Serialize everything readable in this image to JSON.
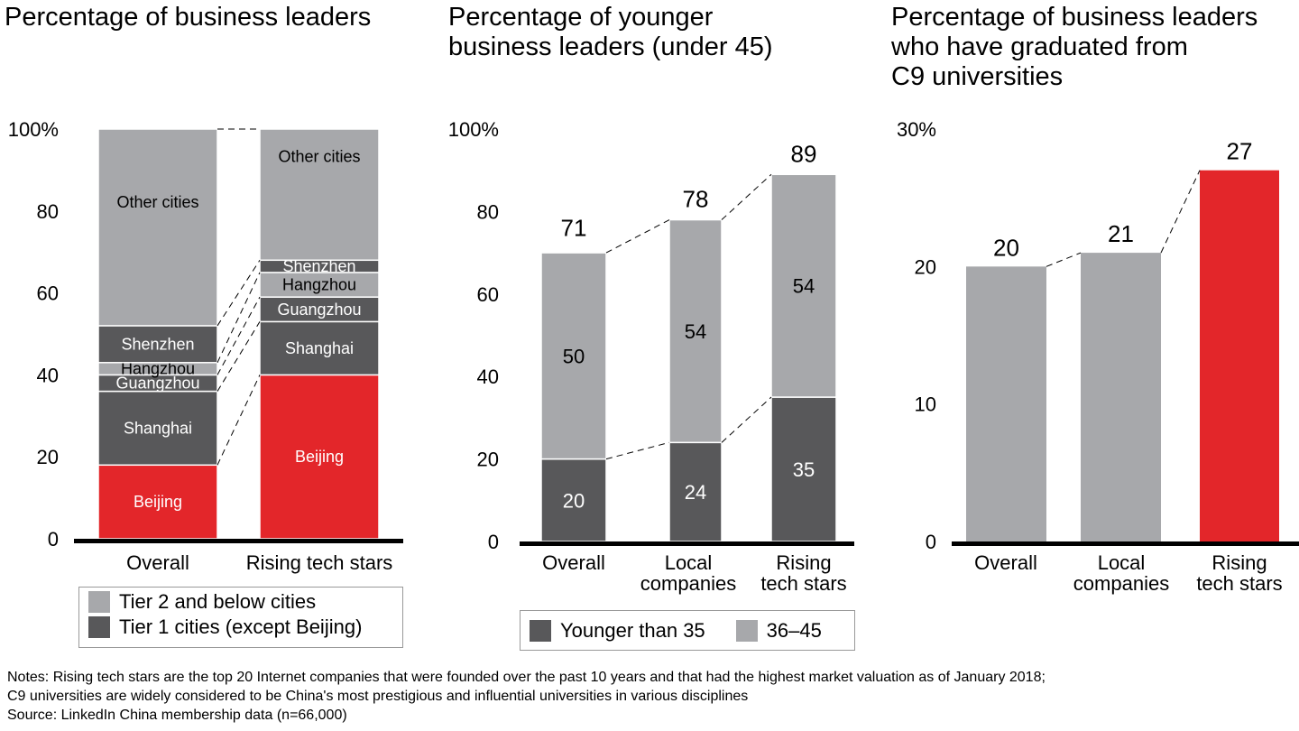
{
  "colors": {
    "red": "#e3262a",
    "dark": "#58585a",
    "light": "#a7a8ab",
    "axis": "#000000"
  },
  "notes": [
    "Notes: Rising tech stars are the top 20 Internet companies that were founded over the past 10 years and that had the highest market valuation as of January 2018;",
    "C9 universities are widely considered to be China's most prestigious and influential universities in various disciplines",
    "Source: LinkedIn China membership data (n=66,000)"
  ],
  "chart_data": [
    {
      "type": "bar",
      "stacked": true,
      "title": "Percentage of business leaders",
      "ylabel": "",
      "ylim": [
        0,
        100
      ],
      "yticks": [
        "0",
        "20",
        "40",
        "60",
        "80",
        "100%"
      ],
      "categories": [
        "Overall",
        "Rising tech stars"
      ],
      "series": [
        {
          "name": "Beijing",
          "color_key": "red",
          "values": [
            18,
            40
          ]
        },
        {
          "name": "Shanghai",
          "color_key": "dark",
          "values": [
            18,
            13
          ]
        },
        {
          "name": "Guangzhou",
          "color_key": "dark",
          "values": [
            4,
            6
          ]
        },
        {
          "name": "Hangzhou",
          "color_key": "light",
          "values": [
            3,
            6
          ]
        },
        {
          "name": "Shenzhen",
          "color_key": "dark",
          "values": [
            9,
            3
          ]
        },
        {
          "name": "Other cities",
          "color_key": "light",
          "values": [
            48,
            32
          ]
        }
      ],
      "legend": [
        {
          "label": "Tier 2 and below cities",
          "color_key": "light"
        },
        {
          "label": "Tier 1 cities (except Beijing)",
          "color_key": "dark"
        }
      ],
      "legend_position": "bottom"
    },
    {
      "type": "bar",
      "stacked": true,
      "title": "Percentage of younger business leaders (under 45)",
      "title_lines": [
        "Percentage of younger",
        "business leaders (under 45)"
      ],
      "ylim": [
        0,
        100
      ],
      "yticks": [
        "0",
        "20",
        "40",
        "60",
        "80",
        "100%"
      ],
      "categories": [
        [
          "Overall"
        ],
        [
          "Local",
          "companies"
        ],
        [
          "Rising",
          "tech stars"
        ]
      ],
      "series": [
        {
          "name": "Younger than 35",
          "color_key": "dark",
          "values": [
            20,
            24,
            35
          ]
        },
        {
          "name": "36–45",
          "color_key": "light",
          "values": [
            50,
            54,
            54
          ]
        }
      ],
      "totals": [
        71,
        78,
        89
      ],
      "legend": [
        {
          "label": "Younger than 35",
          "color_key": "dark"
        },
        {
          "label": "36–45",
          "color_key": "light"
        }
      ],
      "legend_position": "bottom"
    },
    {
      "type": "bar",
      "title": "Percentage of business leaders who have graduated from C9 universities",
      "title_lines": [
        "Percentage of business leaders",
        "who have graduated from",
        "C9 universities"
      ],
      "ylim": [
        0,
        30
      ],
      "yticks": [
        "0",
        "10",
        "20",
        "30%"
      ],
      "categories": [
        [
          "Overall"
        ],
        [
          "Local",
          "companies"
        ],
        [
          "Rising",
          "tech stars"
        ]
      ],
      "values": [
        20,
        21,
        27
      ],
      "bar_colors": [
        "light",
        "light",
        "red"
      ]
    }
  ]
}
